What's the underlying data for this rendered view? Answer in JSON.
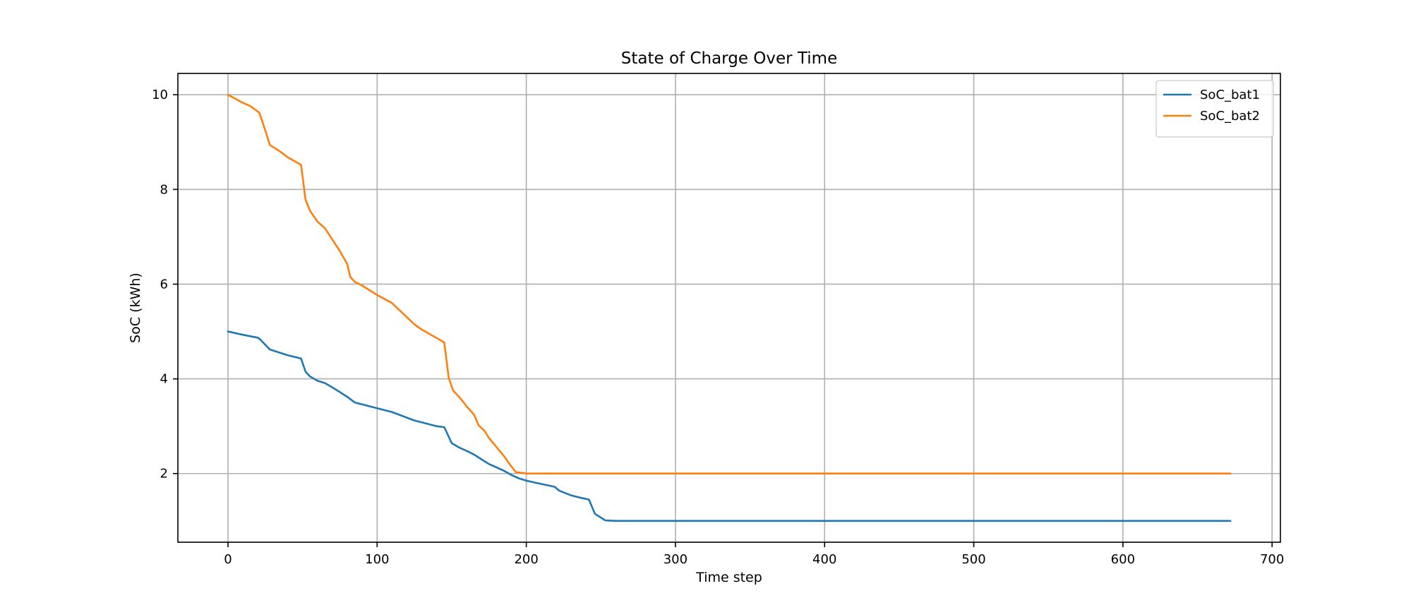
{
  "chart_data": {
    "type": "line",
    "title": "State of Charge Over Time",
    "xlabel": "Time step",
    "ylabel": "SoC (kWh)",
    "xlim": [
      -33.6,
      705.6
    ],
    "ylim": [
      0.55,
      10.45
    ],
    "xticks": [
      0,
      100,
      200,
      300,
      400,
      500,
      600,
      700
    ],
    "yticks": [
      2,
      4,
      6,
      8,
      10
    ],
    "grid": true,
    "legend_position": "top-right",
    "series": [
      {
        "name": "SoC_bat1",
        "color": "#1f77b4",
        "x": [
          0,
          10,
          20,
          22,
          25,
          28,
          35,
          40,
          45,
          49,
          52,
          55,
          60,
          65,
          70,
          75,
          80,
          85,
          90,
          100,
          110,
          120,
          125,
          130,
          140,
          145,
          150,
          155,
          160,
          165,
          170,
          175,
          180,
          185,
          190,
          195,
          200,
          210,
          219,
          222,
          230,
          235,
          242,
          246,
          250,
          253,
          260,
          300,
          400,
          500,
          600,
          672
        ],
        "y": [
          5.0,
          4.93,
          4.87,
          4.82,
          4.72,
          4.62,
          4.55,
          4.5,
          4.46,
          4.43,
          4.15,
          4.05,
          3.96,
          3.91,
          3.82,
          3.72,
          3.62,
          3.5,
          3.46,
          3.38,
          3.3,
          3.18,
          3.12,
          3.08,
          3.0,
          2.98,
          2.64,
          2.55,
          2.48,
          2.4,
          2.3,
          2.2,
          2.13,
          2.06,
          1.97,
          1.9,
          1.85,
          1.78,
          1.72,
          1.64,
          1.54,
          1.5,
          1.45,
          1.15,
          1.07,
          1.01,
          1.0,
          1.0,
          1.0,
          1.0,
          1.0,
          1.0
        ]
      },
      {
        "name": "SoC_bat2",
        "color": "#ff7f0e",
        "x": [
          0,
          10,
          15,
          21,
          25,
          28,
          35,
          40,
          45,
          49,
          52,
          55,
          60,
          65,
          70,
          75,
          80,
          82,
          85,
          90,
          100,
          110,
          120,
          125,
          130,
          140,
          145,
          148,
          151,
          155,
          160,
          165,
          168,
          172,
          175,
          180,
          185,
          190,
          193,
          200,
          300,
          400,
          500,
          600,
          672
        ],
        "y": [
          10.0,
          9.83,
          9.76,
          9.62,
          9.25,
          8.94,
          8.8,
          8.68,
          8.59,
          8.52,
          7.78,
          7.55,
          7.32,
          7.18,
          6.94,
          6.7,
          6.42,
          6.15,
          6.05,
          5.97,
          5.77,
          5.6,
          5.3,
          5.15,
          5.04,
          4.86,
          4.77,
          4.02,
          3.75,
          3.62,
          3.42,
          3.24,
          3.02,
          2.9,
          2.75,
          2.56,
          2.37,
          2.15,
          2.03,
          2.0,
          2.0,
          2.0,
          2.0,
          2.0,
          2.0
        ]
      }
    ]
  }
}
